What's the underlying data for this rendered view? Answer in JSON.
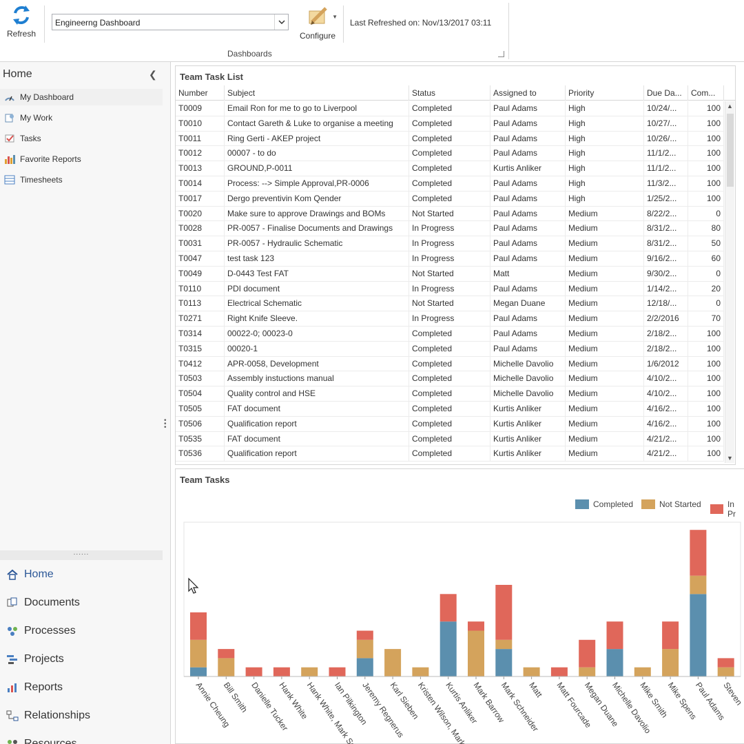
{
  "ribbon": {
    "refresh_label": "Refresh",
    "dashboard_select": "Engineerng Dashboard",
    "configure_label": "Configure",
    "last_refreshed": "Last Refreshed on: Nov/13/2017 03:11",
    "group_label": "Dashboards"
  },
  "sidebar": {
    "title": "Home",
    "items": [
      {
        "label": "My Dashboard",
        "icon": "dashboard-icon"
      },
      {
        "label": "My Work",
        "icon": "my-work-icon"
      },
      {
        "label": "Tasks",
        "icon": "tasks-icon"
      },
      {
        "label": "Favorite Reports",
        "icon": "bar-chart-icon"
      },
      {
        "label": "Timesheets",
        "icon": "timesheet-icon"
      }
    ],
    "nav": [
      {
        "label": "Home",
        "icon": "home-icon"
      },
      {
        "label": "Documents",
        "icon": "documents-icon"
      },
      {
        "label": "Processes",
        "icon": "processes-icon"
      },
      {
        "label": "Projects",
        "icon": "projects-icon"
      },
      {
        "label": "Reports",
        "icon": "reports-icon"
      },
      {
        "label": "Relationships",
        "icon": "relationships-icon"
      },
      {
        "label": "Resources",
        "icon": "resources-icon"
      }
    ]
  },
  "task_list": {
    "title": "Team Task List",
    "columns": [
      "Number",
      "Subject",
      "Status",
      "Assigned to",
      "Priority",
      "Due Da...",
      "Com..."
    ],
    "rows": [
      [
        "T0009",
        "Email Ron for me to go to Liverpool",
        "Completed",
        "Paul Adams",
        "High",
        "10/24/...",
        "100"
      ],
      [
        "T0010",
        "Contact Gareth & Luke to organise a meeting",
        "Completed",
        "Paul Adams",
        "High",
        "10/27/...",
        "100"
      ],
      [
        "T0011",
        "Ring Gerti - AKEP project",
        "Completed",
        "Paul Adams",
        "High",
        "10/26/...",
        "100"
      ],
      [
        "T0012",
        "00007 - to do",
        "Completed",
        "Paul Adams",
        "High",
        "11/1/2...",
        "100"
      ],
      [
        "T0013",
        "GROUND,P-0011",
        "Completed",
        "Kurtis Anliker",
        "High",
        "11/1/2...",
        "100"
      ],
      [
        "T0014",
        "Process: --> Simple Approval,PR-0006",
        "Completed",
        "Paul Adams",
        "High",
        "11/3/2...",
        "100"
      ],
      [
        "T0017",
        "Dergo preventivin Kom Qender",
        "Completed",
        "Paul Adams",
        "High",
        "1/25/2...",
        "100"
      ],
      [
        "T0020",
        "Make sure to approve Drawings and BOMs",
        "Not Started",
        "Paul Adams",
        "Medium",
        "8/22/2...",
        "0"
      ],
      [
        "T0028",
        "PR-0057 - Finalise Documents and Drawings",
        "In Progress",
        "Paul Adams",
        "Medium",
        "8/31/2...",
        "80"
      ],
      [
        "T0031",
        "PR-0057 - Hydraulic Schematic",
        "In Progress",
        "Paul Adams",
        "Medium",
        "8/31/2...",
        "50"
      ],
      [
        "T0047",
        "test task 123",
        "In Progress",
        "Paul Adams",
        "Medium",
        "9/16/2...",
        "60"
      ],
      [
        "T0049",
        "D-0443 Test FAT",
        "Not Started",
        "Matt",
        "Medium",
        "9/30/2...",
        "0"
      ],
      [
        "T0110",
        "PDI document",
        "In Progress",
        "Paul Adams",
        "Medium",
        "1/14/2...",
        "20"
      ],
      [
        "T0113",
        "Electrical Schematic",
        "Not Started",
        "Megan Duane",
        "Medium",
        "12/18/...",
        "0"
      ],
      [
        "T0271",
        "Right Knife Sleeve.",
        "In Progress",
        "Paul Adams",
        "Medium",
        "2/2/2016",
        "70"
      ],
      [
        "T0314",
        "00022-0; 00023-0",
        "Completed",
        "Paul Adams",
        "Medium",
        "2/18/2...",
        "100"
      ],
      [
        "T0315",
        "00020-1",
        "Completed",
        "Paul Adams",
        "Medium",
        "2/18/2...",
        "100"
      ],
      [
        "T0412",
        "APR-0058, Development",
        "Completed",
        "Michelle Davolio",
        "Medium",
        "1/6/2012",
        "100"
      ],
      [
        "T0503",
        "Assembly instuctions manual",
        "Completed",
        "Michelle Davolio",
        "Medium",
        "4/10/2...",
        "100"
      ],
      [
        "T0504",
        "Quality control and HSE",
        "Completed",
        "Michelle Davolio",
        "Medium",
        "4/10/2...",
        "100"
      ],
      [
        "T0505",
        "FAT document",
        "Completed",
        "Kurtis Anliker",
        "Medium",
        "4/16/2...",
        "100"
      ],
      [
        "T0506",
        "Qualification report",
        "Completed",
        "Kurtis Anliker",
        "Medium",
        "4/16/2...",
        "100"
      ],
      [
        "T0535",
        "FAT document",
        "Completed",
        "Kurtis Anliker",
        "Medium",
        "4/21/2...",
        "100"
      ],
      [
        "T0536",
        "Qualification report",
        "Completed",
        "Kurtis Anliker",
        "Medium",
        "4/21/2...",
        "100"
      ]
    ]
  },
  "team_tasks": {
    "title": "Team Tasks",
    "colors": {
      "completed": "#5b8fae",
      "not_started": "#d4a35c",
      "in_progress": "#e0675a"
    },
    "chart_data": {
      "type": "bar",
      "stacked": true,
      "categories": [
        "Annie Cheung",
        "Bill Smith",
        "Danielle Tucker",
        "Hank White",
        "Hank White, Mark Sc",
        "Ian Pilkington",
        "Jeremy Regnerus",
        "Karl Sieben",
        "Kristen Wilson, Mark",
        "Kurtis Anliker",
        "Mark Barrow",
        "Mark Schneider",
        "Matt",
        "Matt Fourcade",
        "Megan Duane",
        "Michelle Davolio",
        "Mike Smith",
        "Mike Spens",
        "Paul Adams",
        "Steven"
      ],
      "series": [
        {
          "name": "Completed",
          "values": [
            1,
            0,
            0,
            0,
            0,
            0,
            2,
            0,
            0,
            6,
            0,
            3,
            0,
            0,
            0,
            3,
            0,
            0,
            9,
            0
          ]
        },
        {
          "name": "Not Started",
          "values": [
            3,
            2,
            0,
            0,
            1,
            0,
            2,
            3,
            1,
            0,
            5,
            1,
            1,
            0,
            1,
            0,
            1,
            3,
            2,
            1
          ]
        },
        {
          "name": "In Progress",
          "values": [
            3,
            1,
            1,
            1,
            0,
            1,
            1,
            0,
            0,
            3,
            1,
            6,
            0,
            1,
            3,
            3,
            0,
            3,
            5,
            1
          ]
        }
      ],
      "legend": [
        "Completed",
        "Not Started",
        "In Pr"
      ],
      "legend_position": "top-right"
    }
  }
}
